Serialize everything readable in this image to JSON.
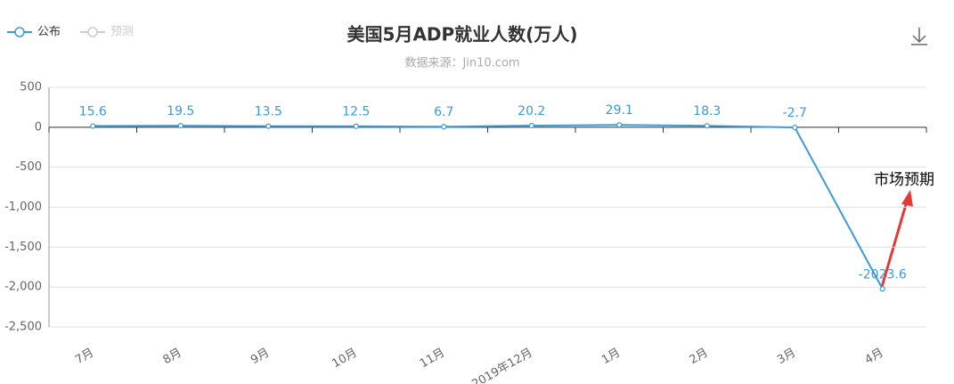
{
  "chart_data": {
    "type": "line",
    "title": "美国5月ADP就业人数(万人)",
    "subtitle": "数据来源：Jin10.com",
    "categories": [
      "7月",
      "8月",
      "9月",
      "10月",
      "11月",
      "2019年12月",
      "1月",
      "2月",
      "3月",
      "4月"
    ],
    "series": [
      {
        "name": "公布",
        "color": "#3a9ad9",
        "values": [
          15.6,
          19.5,
          13.5,
          12.5,
          6.7,
          20.2,
          29.1,
          18.3,
          -2.7,
          -2023.6
        ]
      },
      {
        "name": "预测",
        "color": "#cccccc",
        "values": [
          null,
          null,
          null,
          null,
          null,
          null,
          null,
          null,
          null,
          null
        ]
      }
    ],
    "ylim": [
      -2500,
      500
    ],
    "yticks": [
      500,
      0,
      -500,
      {
        "value": -1000,
        "label": "-1,000"
      },
      {
        "value": -1500,
        "label": "-1,500"
      },
      {
        "value": -2000,
        "label": "-2,000"
      },
      {
        "value": -2500,
        "label": "-2,500"
      }
    ],
    "grid": true,
    "legend": "top-left",
    "annotation": "市场预期"
  }
}
